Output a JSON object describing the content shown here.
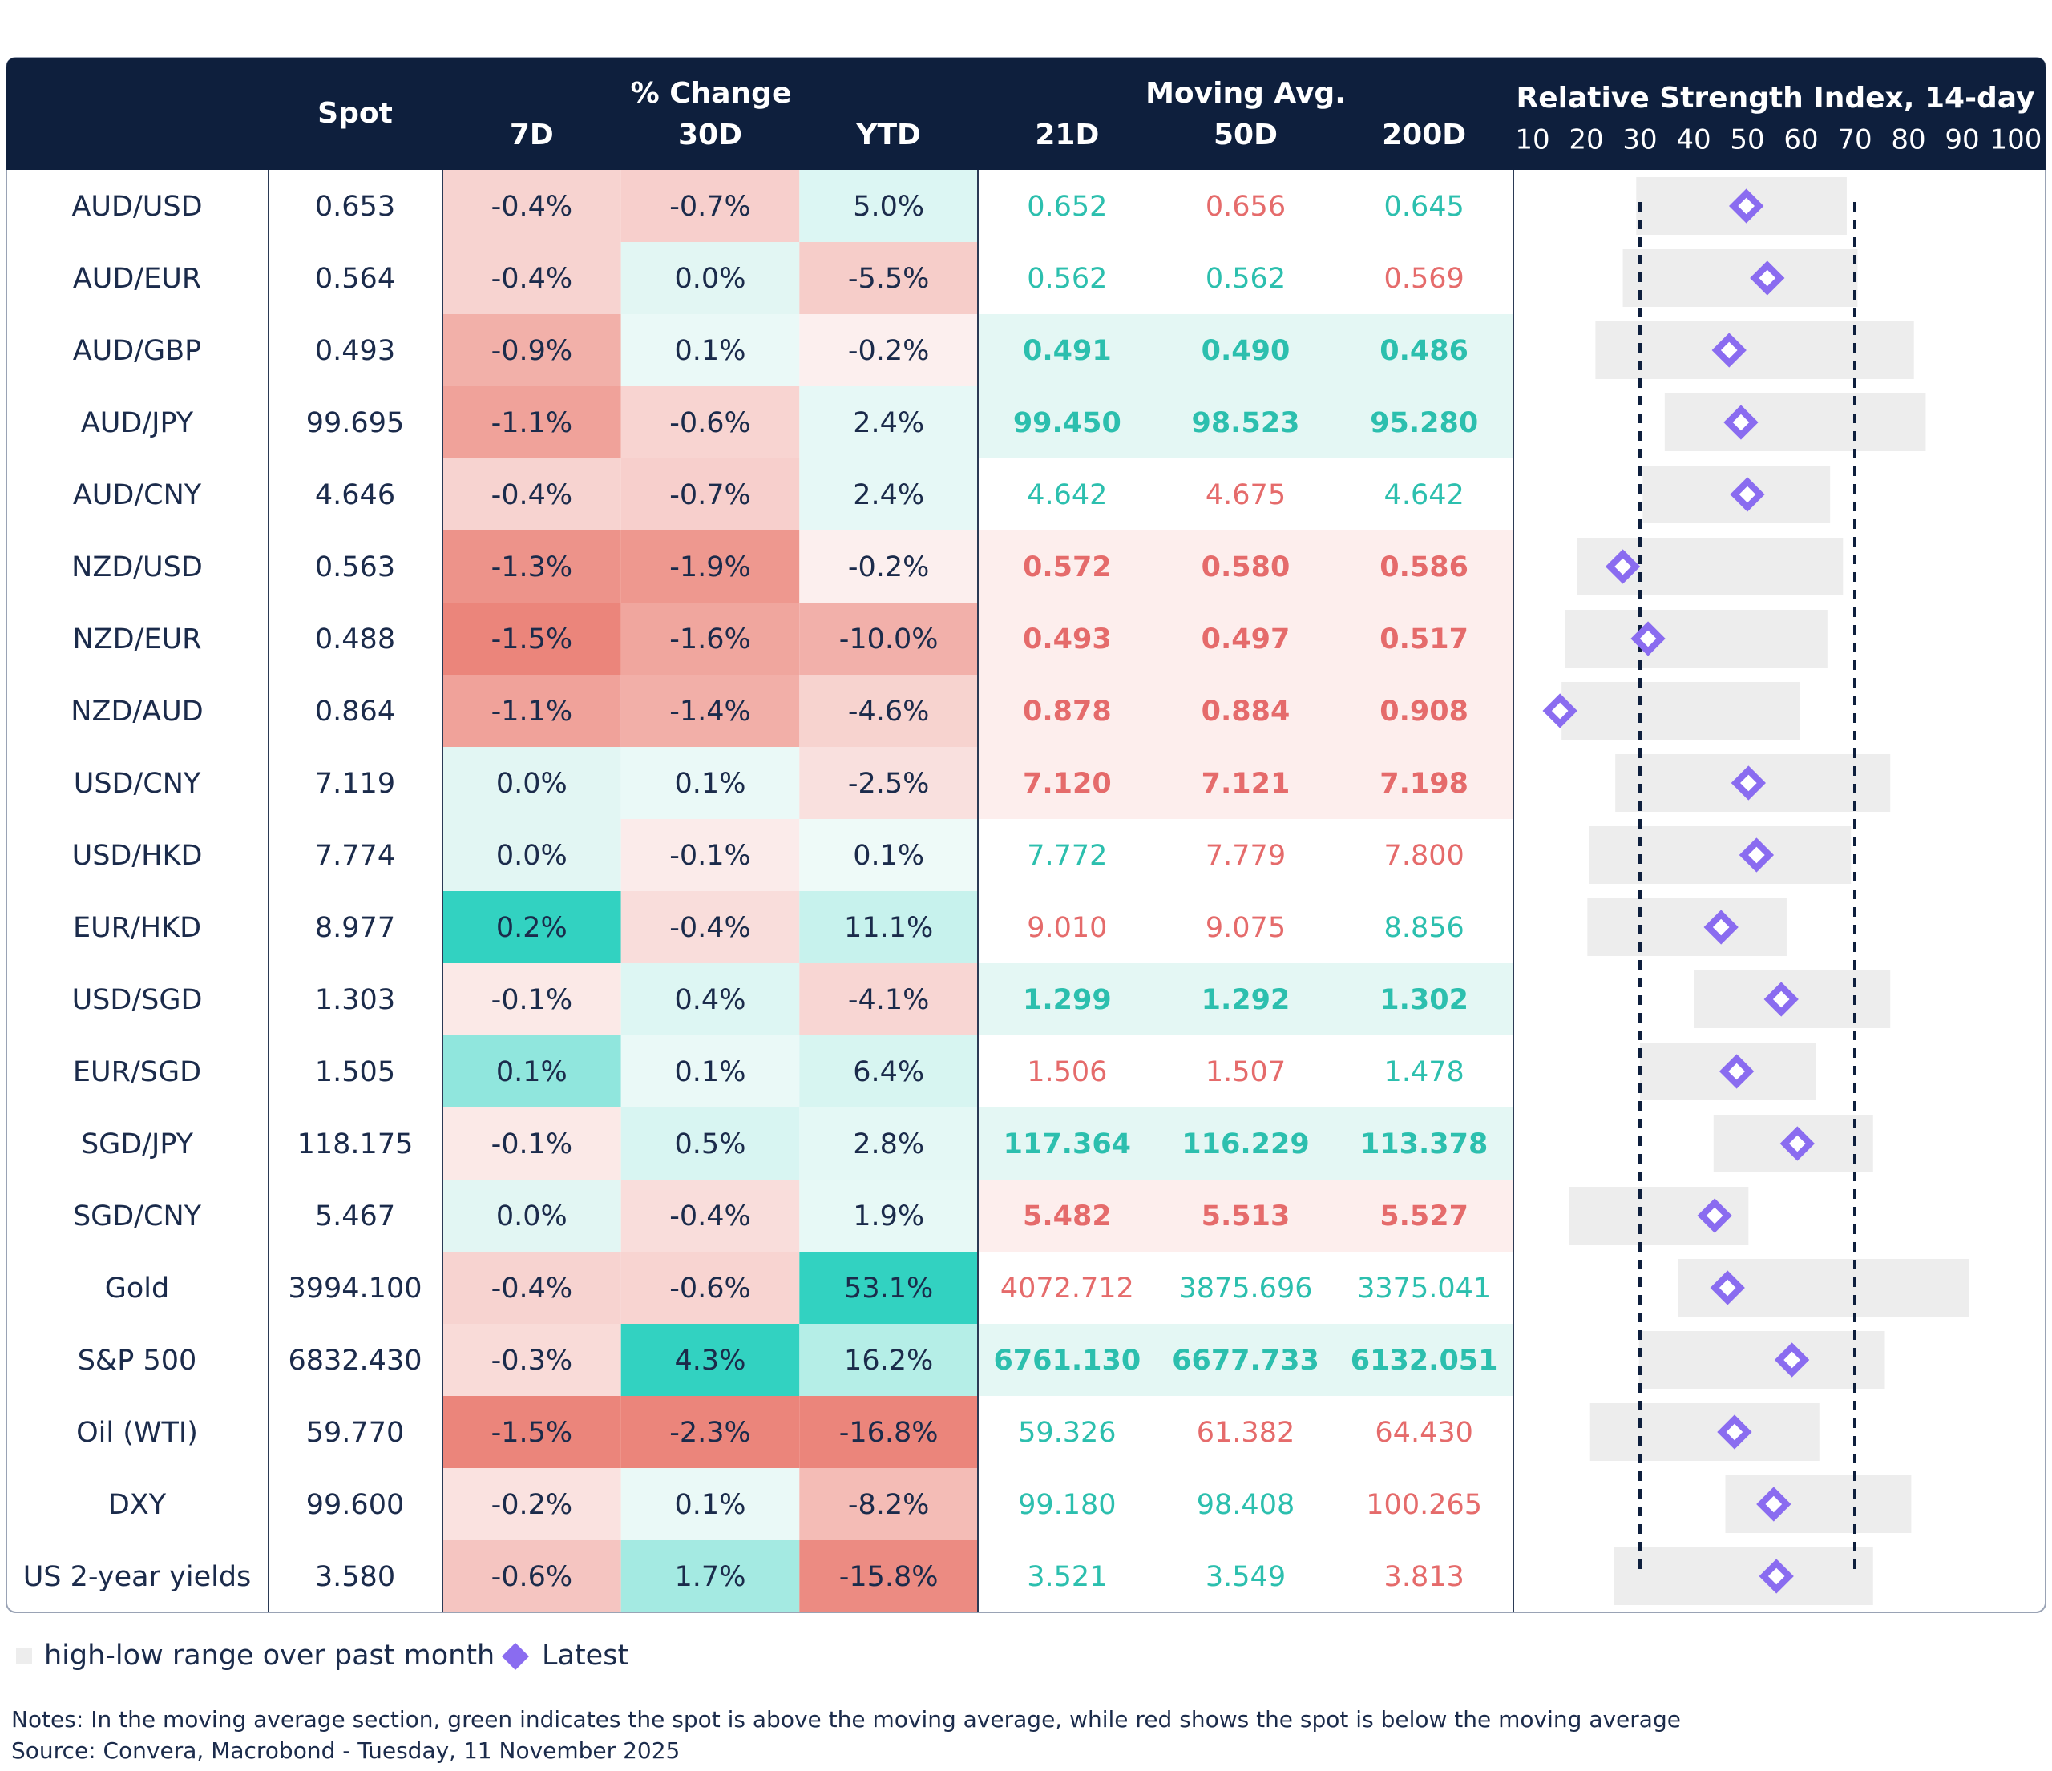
{
  "header": {
    "spot": "Spot",
    "change_group": "% Change",
    "change_cols": [
      "7D",
      "30D",
      "YTD"
    ],
    "ma_group": "Moving Avg.",
    "ma_cols": [
      "21D",
      "50D",
      "200D"
    ]
  },
  "rows": [
    {
      "name": "AUD/USD",
      "spot": "0.653",
      "change": [
        "-0.4%",
        "-0.7%",
        "5.0%"
      ],
      "ma": [
        "0.652",
        "0.656",
        "0.645"
      ]
    },
    {
      "name": "AUD/EUR",
      "spot": "0.564",
      "change": [
        "-0.4%",
        "0.0%",
        "-5.5%"
      ],
      "ma": [
        "0.562",
        "0.562",
        "0.569"
      ]
    },
    {
      "name": "AUD/GBP",
      "spot": "0.493",
      "change": [
        "-0.9%",
        "0.1%",
        "-0.2%"
      ],
      "ma": [
        "0.491",
        "0.490",
        "0.486"
      ]
    },
    {
      "name": "AUD/JPY",
      "spot": "99.695",
      "change": [
        "-1.1%",
        "-0.6%",
        "2.4%"
      ],
      "ma": [
        "99.450",
        "98.523",
        "95.280"
      ]
    },
    {
      "name": "AUD/CNY",
      "spot": "4.646",
      "change": [
        "-0.4%",
        "-0.7%",
        "2.4%"
      ],
      "ma": [
        "4.642",
        "4.675",
        "4.642"
      ]
    },
    {
      "name": "NZD/USD",
      "spot": "0.563",
      "change": [
        "-1.3%",
        "-1.9%",
        "-0.2%"
      ],
      "ma": [
        "0.572",
        "0.580",
        "0.586"
      ]
    },
    {
      "name": "NZD/EUR",
      "spot": "0.488",
      "change": [
        "-1.5%",
        "-1.6%",
        "-10.0%"
      ],
      "ma": [
        "0.493",
        "0.497",
        "0.517"
      ]
    },
    {
      "name": "NZD/AUD",
      "spot": "0.864",
      "change": [
        "-1.1%",
        "-1.4%",
        "-4.6%"
      ],
      "ma": [
        "0.878",
        "0.884",
        "0.908"
      ]
    },
    {
      "name": "USD/CNY",
      "spot": "7.119",
      "change": [
        "0.0%",
        "0.1%",
        "-2.5%"
      ],
      "ma": [
        "7.120",
        "7.121",
        "7.198"
      ]
    },
    {
      "name": "USD/HKD",
      "spot": "7.774",
      "change": [
        "0.0%",
        "-0.1%",
        "0.1%"
      ],
      "ma": [
        "7.772",
        "7.779",
        "7.800"
      ]
    },
    {
      "name": "EUR/HKD",
      "spot": "8.977",
      "change": [
        "0.2%",
        "-0.4%",
        "11.1%"
      ],
      "ma": [
        "9.010",
        "9.075",
        "8.856"
      ]
    },
    {
      "name": "USD/SGD",
      "spot": "1.303",
      "change": [
        "-0.1%",
        "0.4%",
        "-4.1%"
      ],
      "ma": [
        "1.299",
        "1.292",
        "1.302"
      ]
    },
    {
      "name": "EUR/SGD",
      "spot": "1.505",
      "change": [
        "0.1%",
        "0.1%",
        "6.4%"
      ],
      "ma": [
        "1.506",
        "1.507",
        "1.478"
      ]
    },
    {
      "name": "SGD/JPY",
      "spot": "118.175",
      "change": [
        "-0.1%",
        "0.5%",
        "2.8%"
      ],
      "ma": [
        "117.364",
        "116.229",
        "113.378"
      ]
    },
    {
      "name": "SGD/CNY",
      "spot": "5.467",
      "change": [
        "0.0%",
        "-0.4%",
        "1.9%"
      ],
      "ma": [
        "5.482",
        "5.513",
        "5.527"
      ]
    },
    {
      "name": "Gold",
      "spot": "3994.100",
      "change": [
        "-0.4%",
        "-0.6%",
        "53.1%"
      ],
      "ma": [
        "4072.712",
        "3875.696",
        "3375.041"
      ]
    },
    {
      "name": "S&P 500",
      "spot": "6832.430",
      "change": [
        "-0.3%",
        "4.3%",
        "16.2%"
      ],
      "ma": [
        "6761.130",
        "6677.733",
        "6132.051"
      ]
    },
    {
      "name": "Oil (WTI)",
      "spot": "59.770",
      "change": [
        "-1.5%",
        "-2.3%",
        "-16.8%"
      ],
      "ma": [
        "59.326",
        "61.382",
        "64.430"
      ]
    },
    {
      "name": "DXY",
      "spot": "99.600",
      "change": [
        "-0.2%",
        "0.1%",
        "-8.2%"
      ],
      "ma": [
        "99.180",
        "98.408",
        "100.265"
      ]
    },
    {
      "name": "US 2-year yields",
      "spot": "3.580",
      "change": [
        "-0.6%",
        "1.7%",
        "-15.8%"
      ],
      "ma": [
        "3.521",
        "3.549",
        "3.813"
      ]
    }
  ],
  "rsi": {
    "title": "Relative Strength Index, 14-day",
    "xlim": [
      10,
      100
    ],
    "xticks": [
      10,
      20,
      30,
      40,
      50,
      60,
      70,
      80,
      90,
      100
    ],
    "thresholds": [
      30,
      70
    ],
    "range_color": "#ededed",
    "latest_color": "#8a6cf0",
    "rows": [
      {
        "low": 29.3,
        "high": 68.5,
        "latest": 49.8
      },
      {
        "low": 26.8,
        "high": 70.5,
        "latest": 53.7
      },
      {
        "low": 21.7,
        "high": 81,
        "latest": 46.6
      },
      {
        "low": 34.6,
        "high": 83.2,
        "latest": 48.8
      },
      {
        "low": 30.5,
        "high": 65.4,
        "latest": 50
      },
      {
        "low": 18.3,
        "high": 67.8,
        "latest": 26.8
      },
      {
        "low": 16.1,
        "high": 64.9,
        "latest": 31.5
      },
      {
        "low": 15.4,
        "high": 59.8,
        "latest": 15.1
      },
      {
        "low": 25.4,
        "high": 76.6,
        "latest": 50.2
      },
      {
        "low": 20.5,
        "high": 69.3,
        "latest": 51.7
      },
      {
        "low": 20.2,
        "high": 57.3,
        "latest": 45.1
      },
      {
        "low": 40,
        "high": 76.6,
        "latest": 56.3
      },
      {
        "low": 30,
        "high": 62.7,
        "latest": 48
      },
      {
        "low": 43.7,
        "high": 73.4,
        "latest": 59.3
      },
      {
        "low": 16.8,
        "high": 50.2,
        "latest": 43.9
      },
      {
        "low": 37.1,
        "high": 91.2,
        "latest": 46.3
      },
      {
        "low": 29.8,
        "high": 75.6,
        "latest": 58.3
      },
      {
        "low": 20.7,
        "high": 63.4,
        "latest": 47.6
      },
      {
        "low": 45.9,
        "high": 80.5,
        "latest": 54.9
      },
      {
        "low": 25.1,
        "high": 73.4,
        "latest": 55.4
      }
    ]
  },
  "legend": {
    "range": "high-low range over past month",
    "latest": "Latest"
  },
  "notes": "Notes: In the moving average section, green indicates the spot is above the moving average, while red shows the spot is below the moving average",
  "source": "Source: Convera, Macrobond - Tuesday, 11 November 2025"
}
